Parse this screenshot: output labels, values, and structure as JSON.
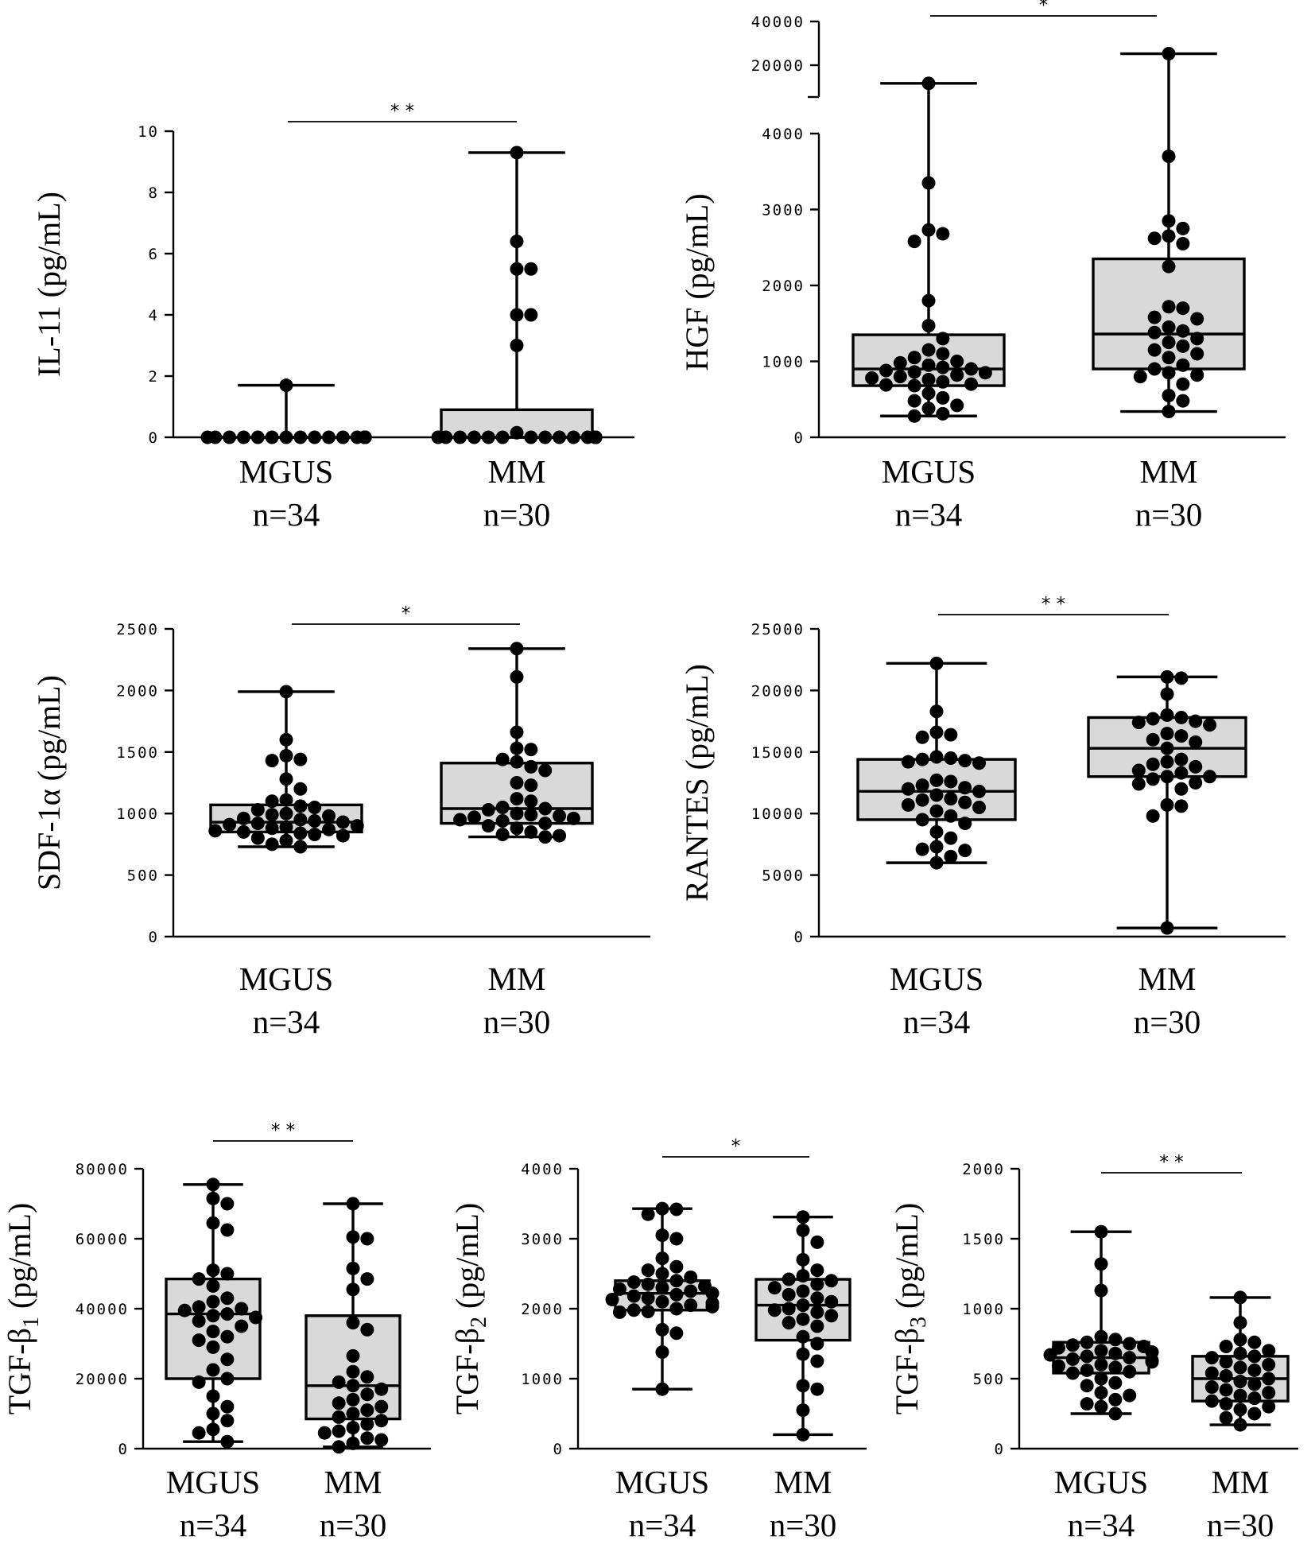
{
  "figure": {
    "colors": {
      "box_fill": "#d9d9d9",
      "stroke": "#000000",
      "point": "#000000",
      "background": "#ffffff"
    }
  },
  "chart_data": [
    {
      "id": "il11",
      "type": "boxplot",
      "ylabel": "IL-11 (pg/mL)",
      "ylim": [
        0,
        10
      ],
      "yticks": [
        0,
        2,
        4,
        6,
        8,
        10
      ],
      "ytick_labels": [
        "0",
        "2",
        "4",
        "6",
        "8",
        "10"
      ],
      "significance": "* *",
      "groups": [
        {
          "name": "MGUS",
          "n_label": "n=34",
          "min": 0,
          "q1": 0,
          "median": 0,
          "q3": 0,
          "max": 1.7,
          "points": [
            1.7,
            0,
            0,
            0,
            0,
            0,
            0,
            0,
            0,
            0,
            0,
            0,
            0,
            0,
            0,
            0,
            0,
            0,
            0,
            0,
            0,
            0,
            0,
            0,
            0,
            0,
            0,
            0,
            0,
            0,
            0,
            0,
            0,
            0
          ]
        },
        {
          "name": "MM",
          "n_label": "n=30",
          "min": 0,
          "q1": 0,
          "median": 0,
          "q3": 0.9,
          "max": 9.3,
          "points": [
            9.3,
            6.4,
            5.5,
            5.5,
            4.0,
            4.0,
            3.0,
            0.15,
            0,
            0,
            0,
            0,
            0,
            0,
            0,
            0,
            0,
            0,
            0,
            0,
            0,
            0,
            0,
            0,
            0,
            0,
            0,
            0,
            0,
            0
          ]
        }
      ]
    },
    {
      "id": "hgf",
      "type": "boxplot",
      "ylabel": "HGF (pg/mL)",
      "ylim": [
        0,
        4000
      ],
      "yticks": [
        0,
        1000,
        2000,
        3000,
        4000
      ],
      "ytick_labels": [
        "0",
        "1000",
        "2000",
        "3000",
        "4000"
      ],
      "broken_axis": {
        "upper_ticks": [
          20000,
          40000
        ],
        "upper_tick_labels": [
          "20000",
          "40000"
        ]
      },
      "significance": "*",
      "groups": [
        {
          "name": "MGUS",
          "n_label": "n=34",
          "min": 280,
          "q1": 680,
          "median": 900,
          "q3": 1350,
          "max": 15000,
          "points": [
            15000,
            3350,
            2730,
            2680,
            2580,
            1800,
            1470,
            1300,
            1150,
            1100,
            1050,
            1000,
            980,
            950,
            920,
            900,
            880,
            860,
            850,
            820,
            800,
            780,
            760,
            730,
            700,
            690,
            680,
            580,
            520,
            480,
            420,
            380,
            310,
            280
          ]
        },
        {
          "name": "MM",
          "n_label": "n=30",
          "min": 340,
          "q1": 900,
          "median": 1360,
          "q3": 2350,
          "max": 24000,
          "points": [
            24000,
            3700,
            2850,
            2750,
            2650,
            2620,
            2550,
            2250,
            1720,
            1700,
            1580,
            1560,
            1450,
            1400,
            1380,
            1300,
            1250,
            1200,
            1150,
            1100,
            1050,
            950,
            900,
            850,
            820,
            800,
            700,
            550,
            480,
            340
          ]
        }
      ]
    },
    {
      "id": "sdf1a",
      "type": "boxplot",
      "ylabel": "SDF-1α (pg/mL)",
      "ylim": [
        0,
        2500
      ],
      "yticks": [
        0,
        500,
        1000,
        1500,
        2000,
        2500
      ],
      "ytick_labels": [
        "0",
        "500",
        "1000",
        "1500",
        "2000",
        "2500"
      ],
      "significance": "*",
      "groups": [
        {
          "name": "MGUS",
          "n_label": "n=34",
          "min": 730,
          "q1": 850,
          "median": 930,
          "q3": 1070,
          "max": 1990,
          "points": [
            1990,
            1600,
            1470,
            1440,
            1430,
            1280,
            1200,
            1110,
            1100,
            1060,
            1050,
            1030,
            1000,
            990,
            980,
            960,
            950,
            940,
            930,
            920,
            910,
            900,
            890,
            880,
            870,
            860,
            850,
            840,
            830,
            820,
            800,
            780,
            750,
            730
          ]
        },
        {
          "name": "MM",
          "n_label": "n=30",
          "min": 810,
          "q1": 920,
          "median": 1040,
          "q3": 1410,
          "max": 2340,
          "points": [
            2340,
            2110,
            1660,
            1530,
            1520,
            1440,
            1420,
            1380,
            1350,
            1250,
            1230,
            1120,
            1100,
            1050,
            1040,
            1030,
            1000,
            990,
            980,
            970,
            960,
            950,
            940,
            920,
            900,
            880,
            850,
            830,
            820,
            810
          ]
        }
      ]
    },
    {
      "id": "rantes",
      "type": "boxplot",
      "ylabel": "RANTES (pg/mL)",
      "ylim": [
        0,
        25000
      ],
      "yticks": [
        0,
        5000,
        10000,
        15000,
        20000,
        25000
      ],
      "ytick_labels": [
        "0",
        "5000",
        "10000",
        "15000",
        "20000",
        "25000"
      ],
      "significance": "* *",
      "groups": [
        {
          "name": "MGUS",
          "n_label": "n=34",
          "min": 6000,
          "q1": 9500,
          "median": 11800,
          "q3": 14400,
          "max": 22200,
          "points": [
            22200,
            18300,
            16600,
            16400,
            16200,
            14600,
            14500,
            14400,
            14300,
            14200,
            14100,
            12700,
            12600,
            12300,
            12100,
            12000,
            11800,
            11500,
            11200,
            11100,
            10900,
            10700,
            10500,
            10200,
            9800,
            9500,
            9200,
            8500,
            8000,
            7300,
            7100,
            7000,
            6500,
            6000
          ]
        },
        {
          "name": "MM",
          "n_label": "n=30",
          "min": 700,
          "q1": 13000,
          "median": 15300,
          "q3": 17800,
          "max": 21100,
          "points": [
            21100,
            21000,
            19700,
            18000,
            17800,
            17700,
            17500,
            17400,
            17200,
            16500,
            16300,
            16000,
            15800,
            15300,
            14400,
            14200,
            14000,
            13800,
            13500,
            13300,
            13000,
            13000,
            12800,
            12500,
            12400,
            12000,
            10700,
            10600,
            9800,
            700
          ]
        }
      ]
    },
    {
      "id": "tgfb1",
      "type": "boxplot",
      "ylabel": "TGF-β1 (pg/mL)",
      "ylabel_parts": {
        "main": "TGF-β",
        "sub": "1",
        "unit": " (pg/mL)"
      },
      "ylim": [
        0,
        80000
      ],
      "yticks": [
        0,
        20000,
        40000,
        60000,
        80000
      ],
      "ytick_labels": [
        "0",
        "20000",
        "40000",
        "60000",
        "80000"
      ],
      "significance": "* *",
      "groups": [
        {
          "name": "MGUS",
          "n_label": "n=34",
          "min": 2000,
          "q1": 20000,
          "median": 38500,
          "q3": 48500,
          "max": 75500,
          "points": [
            75500,
            71500,
            70000,
            64500,
            62500,
            51000,
            50000,
            48500,
            46500,
            43000,
            42000,
            40500,
            40000,
            39500,
            38500,
            38000,
            37500,
            36500,
            35000,
            33500,
            32000,
            31000,
            29000,
            25500,
            22500,
            20000,
            19000,
            15000,
            12000,
            10000,
            8000,
            5500,
            4500,
            2000
          ]
        },
        {
          "name": "MM",
          "n_label": "n=30",
          "min": 500,
          "q1": 8500,
          "median": 18000,
          "q3": 38000,
          "max": 70000,
          "points": [
            70000,
            60500,
            60000,
            51500,
            48500,
            45500,
            36000,
            34000,
            26500,
            22000,
            20500,
            19000,
            18000,
            17000,
            15500,
            14000,
            13000,
            12000,
            11000,
            10000,
            9000,
            8000,
            7000,
            6000,
            5000,
            4500,
            3000,
            2500,
            1500,
            500
          ]
        }
      ]
    },
    {
      "id": "tgfb2",
      "type": "boxplot",
      "ylabel": "TGF-β2 (pg/mL)",
      "ylabel_parts": {
        "main": "TGF-β",
        "sub": "2",
        "unit": " (pg/mL)"
      },
      "ylim": [
        0,
        4000
      ],
      "yticks": [
        0,
        1000,
        2000,
        3000,
        4000
      ],
      "ytick_labels": [
        "0",
        "1000",
        "2000",
        "3000",
        "4000"
      ],
      "significance": "*",
      "groups": [
        {
          "name": "MGUS",
          "n_label": "n=34",
          "min": 850,
          "q1": 1980,
          "median": 2220,
          "q3": 2400,
          "max": 3430,
          "points": [
            3430,
            3420,
            3350,
            3050,
            3000,
            2720,
            2600,
            2550,
            2500,
            2450,
            2400,
            2380,
            2350,
            2320,
            2300,
            2280,
            2250,
            2220,
            2200,
            2180,
            2150,
            2130,
            2100,
            2080,
            2050,
            2030,
            2000,
            1980,
            1960,
            1950,
            1700,
            1650,
            1380,
            850
          ]
        },
        {
          "name": "MM",
          "n_label": "n=30",
          "min": 200,
          "q1": 1550,
          "median": 2050,
          "q3": 2420,
          "max": 3310,
          "points": [
            3310,
            3120,
            2950,
            2700,
            2550,
            2470,
            2420,
            2400,
            2350,
            2300,
            2250,
            2200,
            2150,
            2100,
            2050,
            2000,
            1980,
            1950,
            1900,
            1850,
            1800,
            1750,
            1600,
            1500,
            1350,
            1250,
            900,
            850,
            550,
            200
          ]
        }
      ]
    },
    {
      "id": "tgfb3",
      "type": "boxplot",
      "ylabel": "TGF-β3 (pg/mL)",
      "ylabel_parts": {
        "main": "TGF-β",
        "sub": "3",
        "unit": " (pg/mL)"
      },
      "ylim": [
        0,
        2000
      ],
      "yticks": [
        0,
        500,
        1000,
        1500,
        2000
      ],
      "ytick_labels": [
        "0",
        "500",
        "1000",
        "1500",
        "2000"
      ],
      "significance": "* *",
      "groups": [
        {
          "name": "MGUS",
          "n_label": "n=34",
          "min": 250,
          "q1": 540,
          "median": 650,
          "q3": 760,
          "max": 1550,
          "points": [
            1550,
            1320,
            1130,
            800,
            780,
            760,
            750,
            740,
            730,
            720,
            700,
            690,
            680,
            670,
            660,
            650,
            640,
            630,
            620,
            600,
            590,
            580,
            560,
            550,
            540,
            500,
            470,
            450,
            400,
            380,
            350,
            320,
            300,
            250
          ]
        },
        {
          "name": "MM",
          "n_label": "n=30",
          "min": 170,
          "q1": 340,
          "median": 500,
          "q3": 660,
          "max": 1080,
          "points": [
            1080,
            900,
            780,
            760,
            730,
            700,
            680,
            660,
            650,
            620,
            600,
            580,
            560,
            540,
            520,
            500,
            480,
            460,
            440,
            420,
            400,
            380,
            360,
            340,
            320,
            300,
            280,
            250,
            220,
            170
          ]
        }
      ]
    }
  ]
}
